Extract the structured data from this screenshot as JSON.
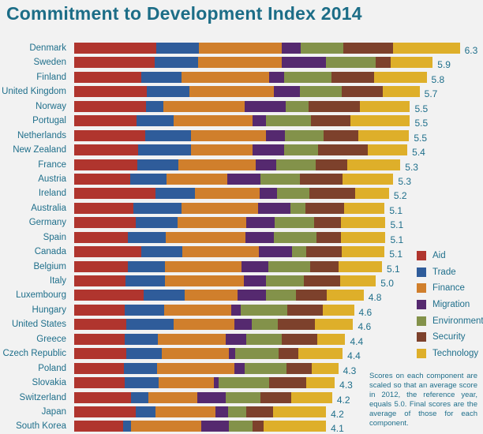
{
  "chart_data": {
    "type": "bar",
    "orientation": "horizontal",
    "stacked": true,
    "title": "Commitment to Development Index 2014",
    "categories": [
      "Denmark",
      "Sweden",
      "Finland",
      "United Kingdom",
      "Norway",
      "Portugal",
      "Netherlands",
      "New Zealand",
      "France",
      "Austria",
      "Ireland",
      "Australia",
      "Germany",
      "Spain",
      "Canada",
      "Belgium",
      "Italy",
      "Luxembourg",
      "Hungary",
      "United States",
      "Greece",
      "Czech Republic",
      "Poland",
      "Slovakia",
      "Switzerland",
      "Japan",
      "South Korea"
    ],
    "scores": [
      "6.3",
      "5.9",
      "5.8",
      "5.7",
      "5.5",
      "5.5",
      "5.5",
      "5.4",
      "5.3",
      "5.3",
      "5.2",
      "5.1",
      "5.1",
      "5.1",
      "5.1",
      "5.1",
      "5.0",
      "4.8",
      "4.6",
      "4.6",
      "4.4",
      "4.4",
      "4.3",
      "4.3",
      "4.2",
      "4.2",
      "4.1"
    ],
    "series": [
      {
        "name": "Aid",
        "color": "#b0352e",
        "values": [
          9.4,
          9.2,
          7.7,
          8.3,
          8.2,
          7.1,
          8.1,
          7.3,
          7.2,
          6.4,
          9.3,
          6.8,
          7.0,
          6.1,
          7.7,
          6.1,
          5.9,
          7.9,
          5.8,
          6.0,
          5.8,
          6.0,
          5.7,
          5.8,
          6.5,
          7.0,
          5.6
        ]
      },
      {
        "name": "Trade",
        "color": "#2f5c9a",
        "values": [
          4.9,
          5.0,
          4.6,
          4.9,
          2.0,
          4.3,
          5.3,
          6.1,
          4.7,
          4.2,
          4.5,
          5.5,
          4.8,
          4.4,
          4.7,
          4.3,
          4.5,
          4.7,
          4.5,
          5.4,
          3.8,
          4.0,
          3.8,
          3.9,
          2.0,
          2.3,
          0.9
        ]
      },
      {
        "name": "Finance",
        "color": "#d07f2c",
        "values": [
          9.4,
          9.5,
          10.0,
          9.6,
          9.3,
          9.0,
          8.5,
          7.0,
          8.9,
          6.9,
          7.4,
          8.7,
          7.9,
          9.1,
          8.7,
          8.7,
          9.0,
          6.1,
          7.7,
          6.9,
          7.7,
          7.7,
          8.8,
          6.3,
          5.6,
          6.9,
          8.0
        ]
      },
      {
        "name": "Migration",
        "color": "#55296f",
        "values": [
          2.2,
          5.1,
          1.7,
          3.0,
          4.7,
          1.5,
          2.2,
          3.6,
          2.3,
          3.8,
          2.0,
          3.7,
          3.2,
          3.2,
          3.8,
          3.1,
          2.5,
          3.2,
          1.0,
          2.0,
          2.4,
          0.7,
          1.2,
          0.5,
          3.2,
          1.4,
          3.2
        ]
      },
      {
        "name": "Environment",
        "color": "#83924a",
        "values": [
          4.9,
          5.7,
          5.4,
          4.8,
          2.6,
          5.2,
          4.4,
          3.9,
          4.5,
          4.5,
          3.7,
          1.7,
          4.5,
          4.9,
          1.6,
          4.8,
          4.4,
          3.5,
          5.4,
          3.0,
          4.0,
          5.0,
          4.8,
          5.8,
          4.0,
          2.1,
          2.7
        ]
      },
      {
        "name": "Security",
        "color": "#7d412c",
        "values": [
          5.7,
          1.7,
          4.9,
          4.7,
          5.9,
          4.5,
          4.0,
          5.7,
          3.6,
          4.9,
          5.2,
          4.5,
          3.1,
          2.8,
          4.1,
          3.2,
          4.1,
          3.5,
          4.0,
          4.2,
          4.1,
          2.2,
          2.9,
          4.2,
          3.5,
          3.0,
          1.3
        ]
      },
      {
        "name": "Technology",
        "color": "#deaf2a",
        "values": [
          7.6,
          4.8,
          6.0,
          4.2,
          5.7,
          6.8,
          5.8,
          4.5,
          6.1,
          5.8,
          3.9,
          4.6,
          5.1,
          5.1,
          4.9,
          5.0,
          4.1,
          4.2,
          3.6,
          4.4,
          3.2,
          5.1,
          3.0,
          3.3,
          4.7,
          6.1,
          7.1
        ]
      }
    ],
    "legend": "right",
    "grid": false,
    "note": "Scores on each component are scaled so that an average score in 2012, the reference year, equals 5.0. Final scores are the average of those for each component."
  }
}
